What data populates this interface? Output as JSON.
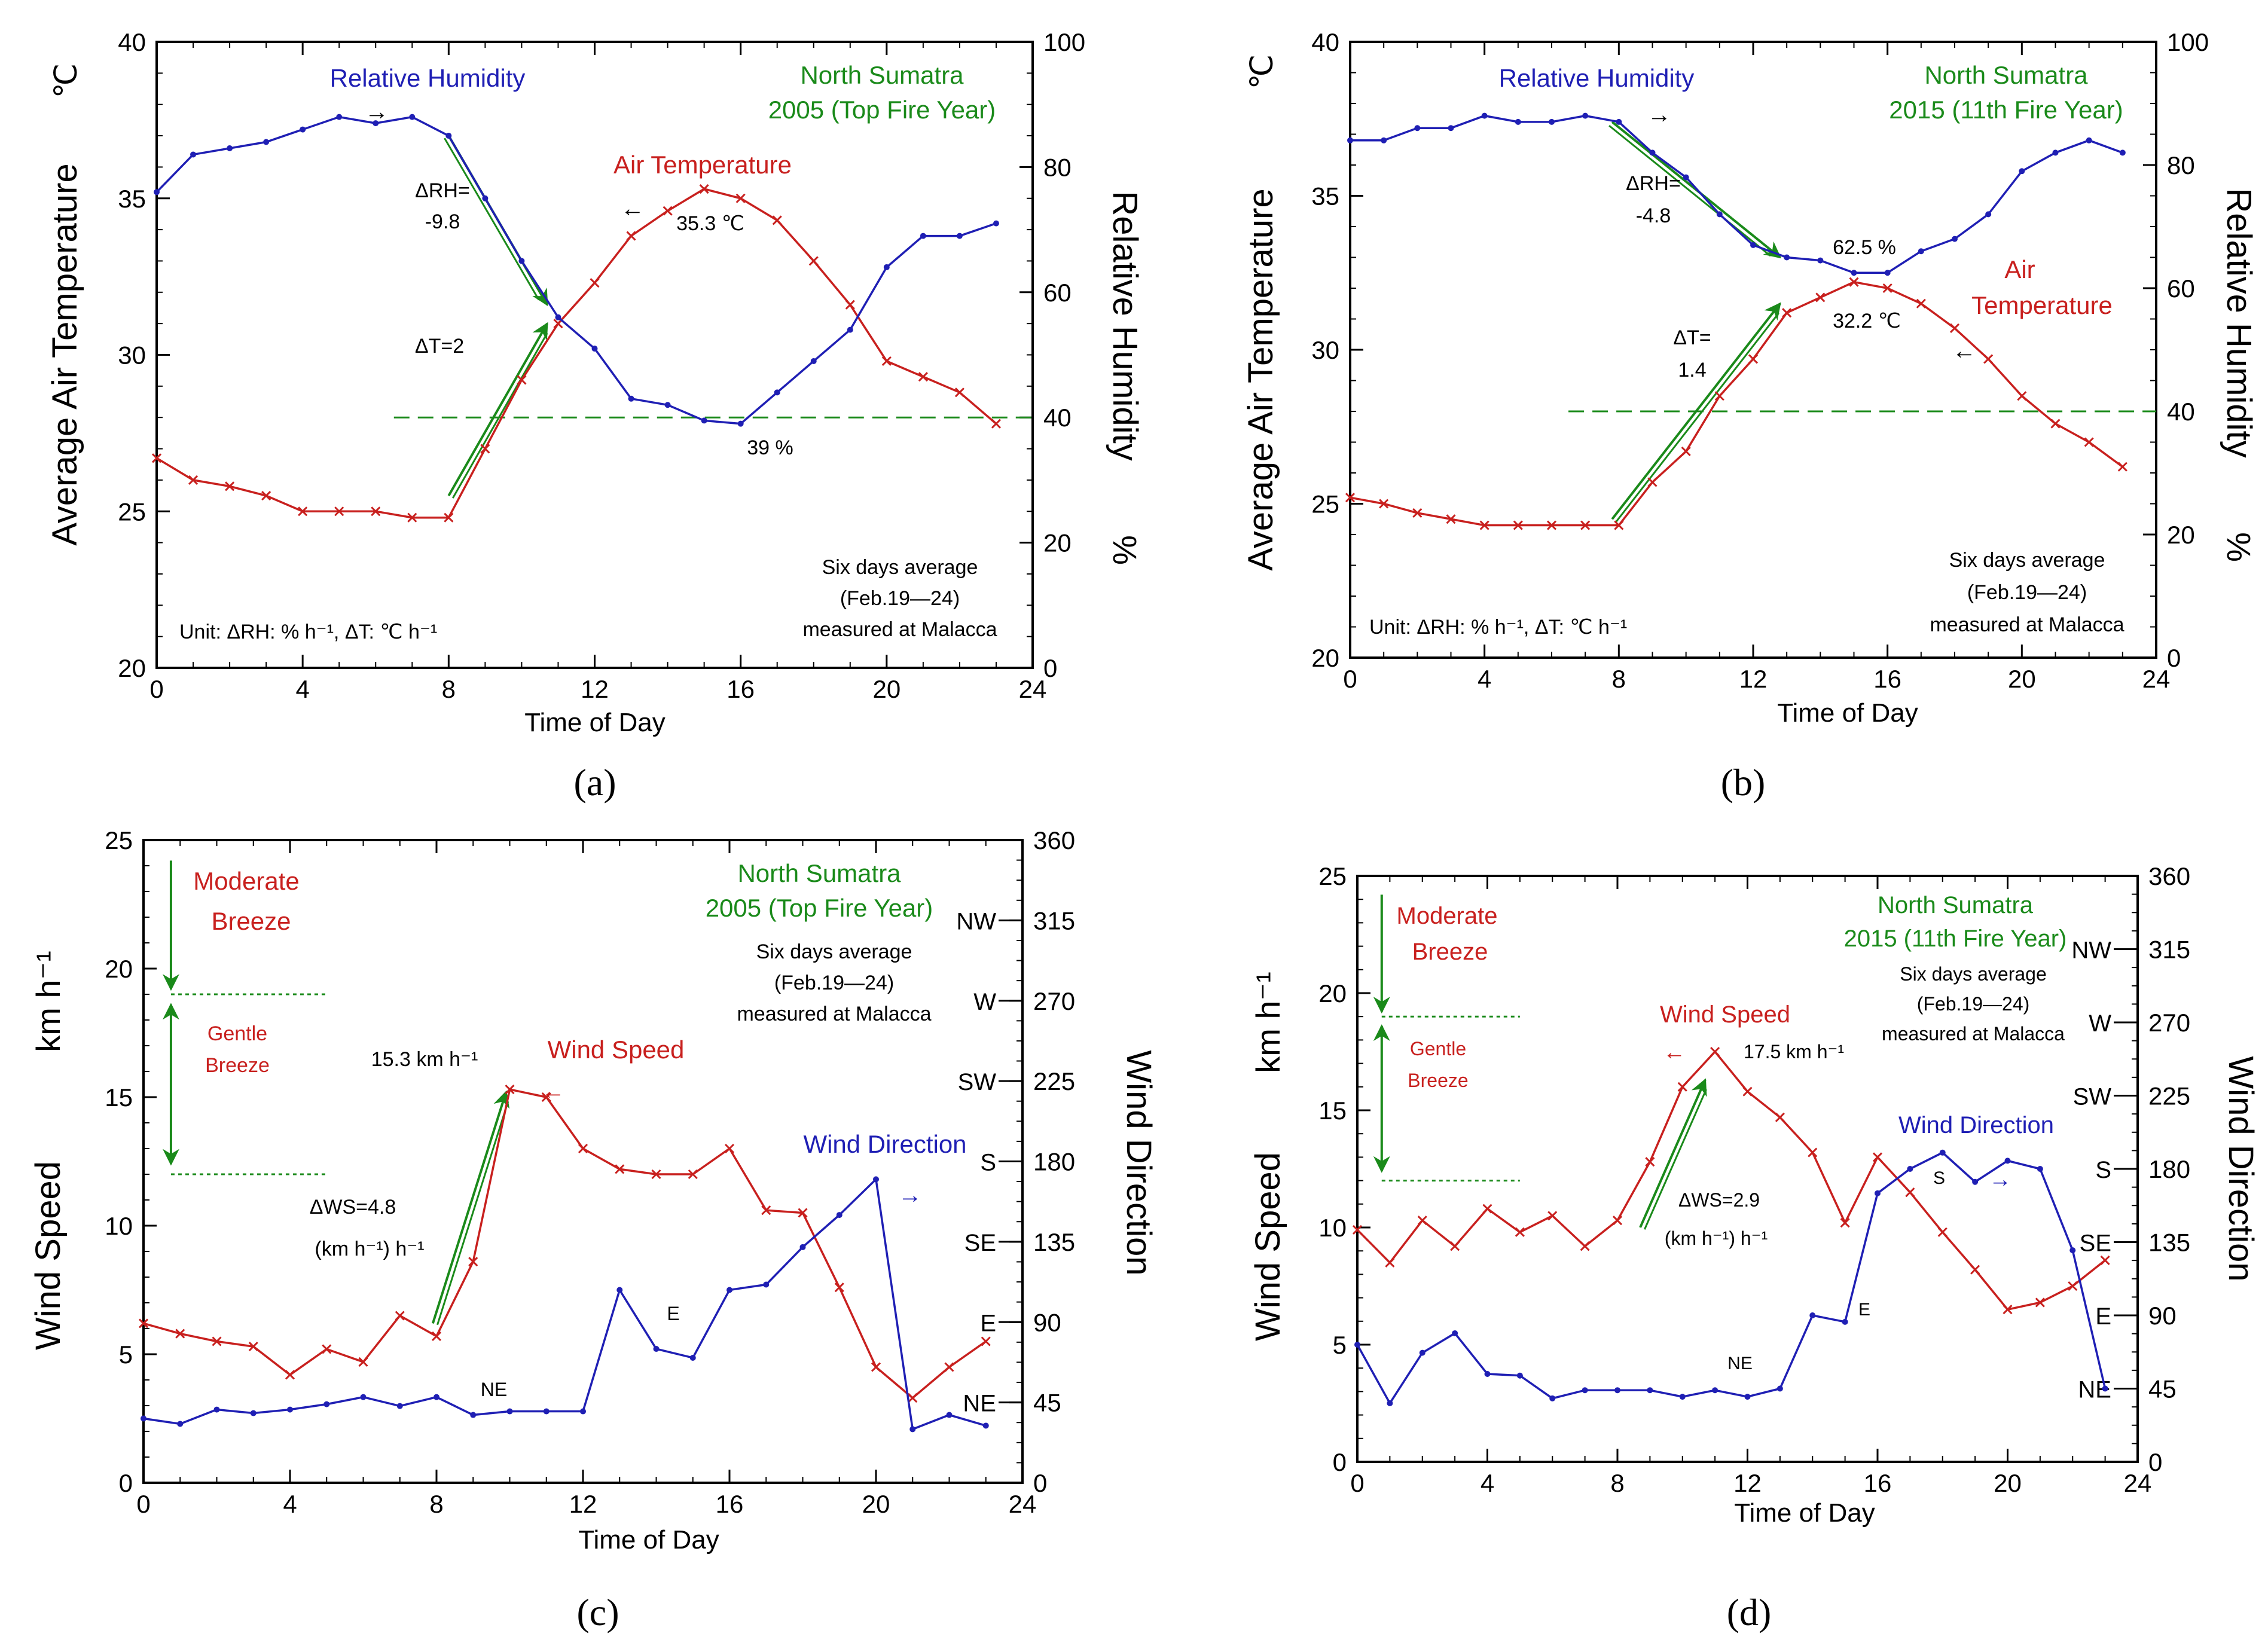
{
  "colors": {
    "temperature": "#c8201e",
    "humidity": "#1f1fb4",
    "wind_speed": "#c8201e",
    "wind_direction": "#1f1fb4",
    "annotation_green": "#1a8a1a",
    "axis": "#000000"
  },
  "chart_data": [
    {
      "id": "a",
      "panel_label": "(a)",
      "type": "line",
      "xlabel": "Time of Day",
      "ylabel_left": "Average Air Temperature",
      "ylabel_left_unit": "℃",
      "ylabel_right": "Relative Humidity",
      "ylabel_right_unit": "%",
      "xlim": [
        0,
        24
      ],
      "ylim_left": [
        20,
        40
      ],
      "ylim_right": [
        0,
        100
      ],
      "xticks": [
        "0",
        "4",
        "8",
        "12",
        "16",
        "20",
        "24"
      ],
      "yticks_left": [
        "20",
        "25",
        "30",
        "35",
        "40"
      ],
      "yticks_right": [
        "0",
        "20",
        "40",
        "60",
        "80",
        "100"
      ],
      "x": [
        0,
        1,
        2,
        3,
        4,
        5,
        6,
        7,
        8,
        9,
        10,
        11,
        12,
        13,
        14,
        15,
        16,
        17,
        18,
        19,
        20,
        21,
        22,
        23
      ],
      "series": [
        {
          "name": "Air Temperature",
          "axis": "left",
          "marker": "x",
          "color": "#c8201e",
          "values": [
            26.7,
            26.0,
            25.8,
            25.5,
            25.0,
            25.0,
            25.0,
            24.8,
            24.8,
            27.0,
            29.2,
            31.0,
            32.3,
            33.8,
            34.6,
            35.3,
            35.0,
            34.3,
            33.0,
            31.6,
            29.8,
            29.3,
            28.8,
            27.8
          ]
        },
        {
          "name": "Relative Humidity",
          "axis": "right",
          "marker": "dot",
          "color": "#1f1fb4",
          "values": [
            76,
            82,
            83,
            84,
            86,
            88,
            87,
            88,
            85,
            75,
            65,
            56,
            51,
            43,
            42,
            39.5,
            39,
            44,
            49,
            54,
            64,
            69,
            69,
            71
          ]
        }
      ],
      "texts": {
        "title_line1": "North Sumatra",
        "title_line2": "2005 (Top Fire Year)",
        "rh_label": "Relative Humidity",
        "rh_arrow": "→",
        "temp_label": "Air Temperature",
        "temp_arrow": "←",
        "temp_peak": "35.3 ℃",
        "rh_min": "39 %",
        "delta_rh_line1": "ΔRH=",
        "delta_rh_line2": "-9.8",
        "delta_t": "ΔT=2",
        "note_line1": "Six days average",
        "note_line2": "(Feb.19—24)",
        "note_line3": "measured at Malacca",
        "unit_note": "Unit: ΔRH:  % h⁻¹,  ΔT: ℃ h⁻¹"
      },
      "reference_line": {
        "axis": "right",
        "value": 40,
        "x_from": 6.5,
        "x_to": 24
      },
      "green_arrows": [
        {
          "from": [
            8,
            85
          ],
          "to": [
            10.7,
            58
          ],
          "axis": "right"
        },
        {
          "from": [
            8,
            25.5
          ],
          "to": [
            10.7,
            31
          ],
          "axis": "left"
        }
      ]
    },
    {
      "id": "b",
      "panel_label": "(b)",
      "type": "line",
      "xlabel": "Time of Day",
      "ylabel_left": "Average Air Temperature",
      "ylabel_left_unit": "℃",
      "ylabel_right": "Relative Humidity",
      "ylabel_right_unit": "%",
      "xlim": [
        0,
        24
      ],
      "ylim_left": [
        20,
        40
      ],
      "ylim_right": [
        0,
        100
      ],
      "xticks": [
        "0",
        "4",
        "8",
        "12",
        "16",
        "20",
        "24"
      ],
      "yticks_left": [
        "20",
        "25",
        "30",
        "35",
        "40"
      ],
      "yticks_right": [
        "0",
        "20",
        "40",
        "60",
        "80",
        "100"
      ],
      "x": [
        0,
        1,
        2,
        3,
        4,
        5,
        6,
        7,
        8,
        9,
        10,
        11,
        12,
        13,
        14,
        15,
        16,
        17,
        18,
        19,
        20,
        21,
        22,
        23
      ],
      "series": [
        {
          "name": "Air Temperature",
          "axis": "left",
          "marker": "x",
          "color": "#c8201e",
          "values": [
            25.2,
            25.0,
            24.7,
            24.5,
            24.3,
            24.3,
            24.3,
            24.3,
            24.3,
            25.7,
            26.7,
            28.5,
            29.7,
            31.2,
            31.7,
            32.2,
            32.0,
            31.5,
            30.7,
            29.7,
            28.5,
            27.6,
            27.0,
            26.2
          ]
        },
        {
          "name": "Relative Humidity",
          "axis": "right",
          "marker": "dot",
          "color": "#1f1fb4",
          "values": [
            84,
            84,
            86,
            86,
            88,
            87,
            87,
            88,
            87,
            82,
            78,
            72,
            67,
            65,
            64.5,
            62.5,
            62.5,
            66,
            68,
            72,
            79,
            82,
            84,
            82
          ]
        }
      ],
      "texts": {
        "title_line1": "North Sumatra",
        "title_line2": "2015 (11th Fire Year)",
        "rh_label": "Relative Humidity",
        "rh_arrow": "→",
        "temp_label_line1": "Air",
        "temp_label_line2": "Temperature",
        "temp_arrow": "←",
        "temp_peak": "32.2 ℃",
        "rh_min": "62.5 %",
        "delta_rh_line1": "ΔRH=",
        "delta_rh_line2": "-4.8",
        "delta_t_line1": "ΔT=",
        "delta_t_line2": "1.4",
        "note_line1": "Six days average",
        "note_line2": "(Feb.19—24)",
        "note_line3": "measured at Malacca",
        "unit_note": "Unit: ΔRH:  % h⁻¹,  ΔT: ℃ h⁻¹"
      },
      "reference_line": {
        "axis": "right",
        "value": 40,
        "x_from": 6.5,
        "x_to": 24
      },
      "green_arrows": [
        {
          "from": [
            7.8,
            87
          ],
          "to": [
            12.8,
            65
          ],
          "axis": "right"
        },
        {
          "from": [
            7.8,
            24.5
          ],
          "to": [
            12.8,
            31.5
          ],
          "axis": "left"
        }
      ]
    },
    {
      "id": "c",
      "panel_label": "(c)",
      "type": "line",
      "xlabel": "Time of Day",
      "ylabel_left": "Wind Speed",
      "ylabel_left_unit": "km h⁻¹",
      "ylabel_right": "Wind Direction",
      "xlim": [
        0,
        24
      ],
      "ylim_left": [
        0,
        25
      ],
      "ylim_right": [
        0,
        360
      ],
      "xticks": [
        "0",
        "4",
        "8",
        "12",
        "16",
        "20",
        "24"
      ],
      "yticks_left": [
        "0",
        "5",
        "10",
        "15",
        "20",
        "25"
      ],
      "yticks_right": [
        "0",
        "45",
        "90",
        "135",
        "180",
        "225",
        "270",
        "315",
        "360"
      ],
      "compass_labels": [
        {
          "label": "NE",
          "value": 45
        },
        {
          "label": "E",
          "value": 90
        },
        {
          "label": "SE",
          "value": 135
        },
        {
          "label": "S",
          "value": 180
        },
        {
          "label": "SW",
          "value": 225
        },
        {
          "label": "W",
          "value": 270
        },
        {
          "label": "NW",
          "value": 315
        }
      ],
      "x": [
        0,
        1,
        2,
        3,
        4,
        5,
        6,
        7,
        8,
        9,
        10,
        11,
        12,
        13,
        14,
        15,
        16,
        17,
        18,
        19,
        20,
        21,
        22,
        23
      ],
      "series": [
        {
          "name": "Wind Speed",
          "axis": "left",
          "marker": "x",
          "color": "#c8201e",
          "values": [
            6.2,
            5.8,
            5.5,
            5.3,
            4.2,
            5.2,
            4.7,
            6.5,
            5.7,
            8.6,
            15.3,
            15.0,
            13.0,
            12.2,
            12.0,
            12.0,
            13.0,
            10.6,
            10.5,
            7.6,
            4.5,
            3.3,
            4.5,
            5.5
          ]
        },
        {
          "name": "Wind Direction",
          "axis": "right",
          "marker": "dot",
          "color": "#1f1fb4",
          "values": [
            36,
            33,
            41,
            39,
            41,
            44,
            48,
            43,
            48,
            38,
            40,
            40,
            40,
            108,
            75,
            70,
            108,
            111,
            132,
            150,
            170,
            30,
            38,
            32
          ]
        }
      ],
      "texts": {
        "title_line1": "North Sumatra",
        "title_line2": "2005 (Top Fire Year)",
        "note_line1": "Six days average",
        "note_line2": "(Feb.19—24)",
        "note_line3": "measured at Malacca",
        "moderate_line1": "Moderate",
        "moderate_line2": "Breeze",
        "gentle_line1": "Gentle",
        "gentle_line2": "Breeze",
        "ws_label": "Wind Speed",
        "ws_arrow": "←",
        "ws_peak": "15.3 km h⁻¹",
        "wd_label": "Wind Direction",
        "wd_arrow": "→",
        "delta_ws_line1": "ΔWS=4.8",
        "delta_ws_line2": "(km h⁻¹) h⁻¹",
        "point_ne": "NE",
        "point_e": "E"
      },
      "breeze_lines": [
        19,
        12
      ],
      "green_arrow": {
        "from": [
          7.9,
          6.2
        ],
        "to": [
          9.9,
          15.2
        ]
      }
    },
    {
      "id": "d",
      "panel_label": "(d)",
      "type": "line",
      "xlabel": "Time of Day",
      "ylabel_left": "Wind Speed",
      "ylabel_left_unit": "km h⁻¹",
      "ylabel_right": "Wind Direction",
      "xlim": [
        0,
        24
      ],
      "ylim_left": [
        0,
        25
      ],
      "ylim_right": [
        0,
        360
      ],
      "xticks": [
        "0",
        "4",
        "8",
        "12",
        "16",
        "20",
        "24"
      ],
      "yticks_left": [
        "0",
        "5",
        "10",
        "15",
        "20",
        "25"
      ],
      "yticks_right": [
        "0",
        "45",
        "90",
        "135",
        "180",
        "225",
        "270",
        "315",
        "360"
      ],
      "compass_labels": [
        {
          "label": "NE",
          "value": 45
        },
        {
          "label": "E",
          "value": 90
        },
        {
          "label": "SE",
          "value": 135
        },
        {
          "label": "S",
          "value": 180
        },
        {
          "label": "SW",
          "value": 225
        },
        {
          "label": "W",
          "value": 270
        },
        {
          "label": "NW",
          "value": 315
        }
      ],
      "x": [
        0,
        1,
        2,
        3,
        4,
        5,
        6,
        7,
        8,
        9,
        10,
        11,
        12,
        13,
        14,
        15,
        16,
        17,
        18,
        19,
        20,
        21,
        22,
        23
      ],
      "series": [
        {
          "name": "Wind Speed",
          "axis": "left",
          "marker": "x",
          "color": "#c8201e",
          "values": [
            9.9,
            8.5,
            10.3,
            9.2,
            10.8,
            9.8,
            10.5,
            9.2,
            10.3,
            12.8,
            16.0,
            17.5,
            15.8,
            14.7,
            13.2,
            10.2,
            13.0,
            11.5,
            9.8,
            8.2,
            6.5,
            6.8,
            7.5,
            8.6
          ]
        },
        {
          "name": "Wind Direction",
          "axis": "right",
          "marker": "dot",
          "color": "#1f1fb4",
          "values": [
            72,
            36,
            67,
            79,
            54,
            53,
            39,
            44,
            44,
            44,
            40,
            44,
            40,
            45,
            90,
            86,
            165,
            180,
            190,
            172,
            185,
            180,
            130,
            45
          ]
        }
      ],
      "texts": {
        "title_line1": "North Sumatra",
        "title_line2": "2015 (11th Fire Year)",
        "note_line1": "Six days average",
        "note_line2": "(Feb.19—24)",
        "note_line3": "measured at Malacca",
        "moderate_line1": "Moderate",
        "moderate_line2": "Breeze",
        "gentle_line1": "Gentle",
        "gentle_line2": "Breeze",
        "ws_label": "Wind Speed",
        "ws_arrow": "←",
        "ws_peak": "17.5 km h⁻¹",
        "wd_label": "Wind Direction",
        "wd_arrow": "→",
        "delta_ws_line1": "ΔWS=2.9",
        "delta_ws_line2": "(km h⁻¹) h⁻¹",
        "point_ne": "NE",
        "point_e": "E",
        "point_s": "S"
      },
      "breeze_lines": [
        19,
        12
      ],
      "green_arrow": {
        "from": [
          8.7,
          10.0
        ],
        "to": [
          10.7,
          16.3
        ]
      }
    }
  ]
}
